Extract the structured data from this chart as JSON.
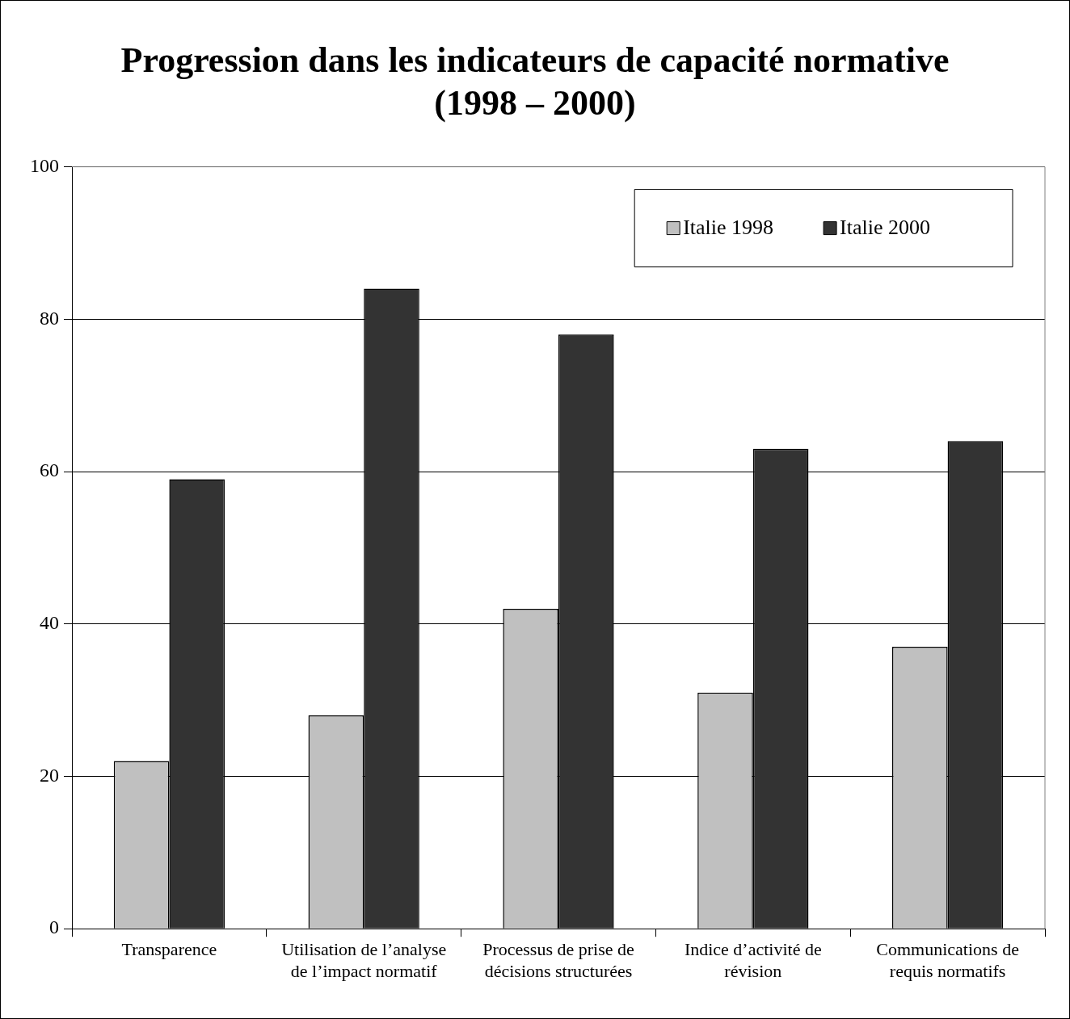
{
  "chart_data": {
    "type": "bar",
    "title": "Progression dans les indicateurs de capacité normative (1998 – 2000)",
    "categories": [
      "Transparence",
      "Utilisation de l’analyse de l’impact normatif",
      "Processus de prise de décisions structurées",
      "Indice d’activité de révision",
      "Communications de requis normatifs"
    ],
    "series": [
      {
        "name": "Italie 1998",
        "color": "#c0c0c0",
        "values": [
          22,
          28,
          42,
          31,
          37
        ]
      },
      {
        "name": "Italie 2000",
        "color": "#333333",
        "values": [
          59,
          84,
          78,
          63,
          64
        ]
      }
    ],
    "ylim": [
      0,
      100
    ],
    "yticks": [
      0,
      20,
      40,
      60,
      80,
      100
    ],
    "grid": "y",
    "legend": "top right"
  }
}
